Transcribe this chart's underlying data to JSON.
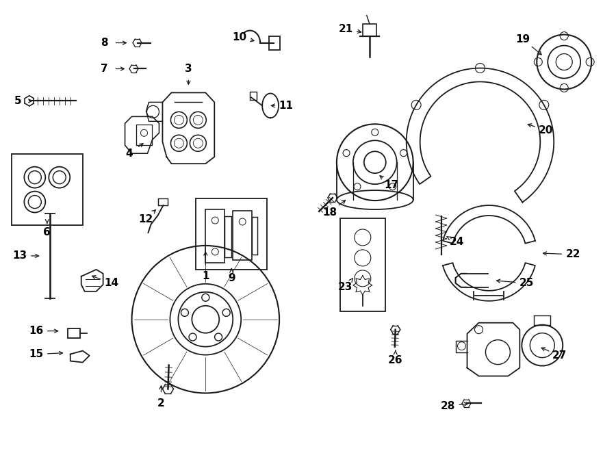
{
  "bg_color": "#ffffff",
  "line_color": "#1a1a1a",
  "label_color": "#000000",
  "figsize": [
    9.0,
    6.62
  ],
  "dpi": 100
}
